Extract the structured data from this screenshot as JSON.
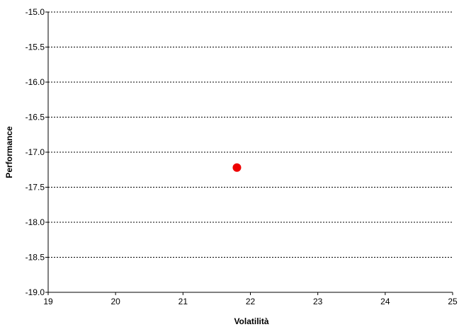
{
  "chart_data": {
    "type": "scatter",
    "title": "",
    "xlabel": "Volatilità",
    "ylabel": "Performance",
    "xlim": [
      19,
      25
    ],
    "ylim": [
      -19.0,
      -15.0
    ],
    "x_ticks": [
      19,
      20,
      21,
      22,
      23,
      24,
      25
    ],
    "x_tick_labels": [
      "19",
      "20",
      "21",
      "22",
      "23",
      "24",
      "25"
    ],
    "y_ticks": [
      -15.0,
      -15.5,
      -16.0,
      -16.5,
      -17.0,
      -17.5,
      -18.0,
      -18.5,
      -19.0
    ],
    "y_tick_labels": [
      "-15.0",
      "-15.5",
      "-16.0",
      "-16.5",
      "-17.0",
      "-17.5",
      "-18.0",
      "-18.5",
      "-19.0"
    ],
    "grid": "horizontal dashed",
    "legend": "none",
    "series": [
      {
        "color": "#ee0000",
        "points": [
          {
            "x": 21.8,
            "y": -17.22
          }
        ]
      }
    ]
  }
}
